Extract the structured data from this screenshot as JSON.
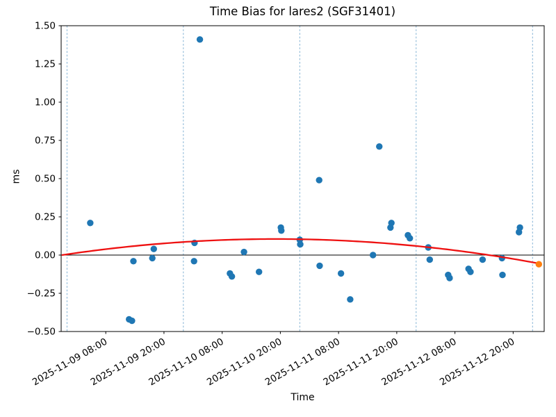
{
  "chart_data": {
    "type": "scatter",
    "title": "Time Bias for lares2 (SGF31401)",
    "xlabel": "Time",
    "ylabel": "ms",
    "ylim": [
      -0.5,
      1.5
    ],
    "xlim_hours": [
      -1.2,
      98.4
    ],
    "x_epoch": "2025-11-09 00:00",
    "grid": "vertical-day-boundaries",
    "legend": "none",
    "y_ticks": [
      {
        "v": 1.5,
        "label": "1.50"
      },
      {
        "v": 1.25,
        "label": "1.25"
      },
      {
        "v": 1.0,
        "label": "1.00"
      },
      {
        "v": 0.75,
        "label": "0.75"
      },
      {
        "v": 0.5,
        "label": "0.50"
      },
      {
        "v": 0.25,
        "label": "0.25"
      },
      {
        "v": 0.0,
        "label": "0.00"
      },
      {
        "v": -0.25,
        "label": "−0.25"
      },
      {
        "v": -0.5,
        "label": "−0.50"
      }
    ],
    "x_ticks": [
      {
        "t": 8,
        "label": "2025-11-09 08:00"
      },
      {
        "t": 20,
        "label": "2025-11-09 20:00"
      },
      {
        "t": 32,
        "label": "2025-11-10 08:00"
      },
      {
        "t": 44,
        "label": "2025-11-10 20:00"
      },
      {
        "t": 56,
        "label": "2025-11-11 08:00"
      },
      {
        "t": 68,
        "label": "2025-11-11 20:00"
      },
      {
        "t": 80,
        "label": "2025-11-12 08:00"
      },
      {
        "t": 92,
        "label": "2025-11-12 20:00"
      }
    ],
    "day_gridlines_hours": [
      0,
      24,
      48,
      72,
      96
    ],
    "zero_line_ms": 0.0,
    "series": [
      {
        "name": "time-bias-observations",
        "color": "#1f77b4",
        "points": [
          {
            "time": "2025-11-09 04:50",
            "t": 4.8,
            "ms": 0.21
          },
          {
            "time": "2025-11-09 12:50",
            "t": 12.8,
            "ms": -0.42
          },
          {
            "time": "2025-11-09 13:25",
            "t": 13.4,
            "ms": -0.43
          },
          {
            "time": "2025-11-09 13:40",
            "t": 13.7,
            "ms": -0.04
          },
          {
            "time": "2025-11-09 17:35",
            "t": 17.6,
            "ms": -0.02
          },
          {
            "time": "2025-11-09 17:55",
            "t": 17.9,
            "ms": 0.04
          },
          {
            "time": "2025-11-10 02:10",
            "t": 26.2,
            "ms": -0.04
          },
          {
            "time": "2025-11-10 02:20",
            "t": 26.3,
            "ms": 0.08
          },
          {
            "time": "2025-11-10 03:25",
            "t": 27.4,
            "ms": 1.41
          },
          {
            "time": "2025-11-10 09:35",
            "t": 33.6,
            "ms": -0.12
          },
          {
            "time": "2025-11-10 10:00",
            "t": 34.0,
            "ms": -0.14
          },
          {
            "time": "2025-11-10 12:30",
            "t": 36.5,
            "ms": 0.02
          },
          {
            "time": "2025-11-10 15:35",
            "t": 39.6,
            "ms": -0.11
          },
          {
            "time": "2025-11-10 20:05",
            "t": 44.1,
            "ms": 0.18
          },
          {
            "time": "2025-11-10 20:10",
            "t": 44.2,
            "ms": 0.16
          },
          {
            "time": "2025-11-11 00:00",
            "t": 48.0,
            "ms": 0.1
          },
          {
            "time": "2025-11-11 00:05",
            "t": 48.1,
            "ms": 0.07
          },
          {
            "time": "2025-11-11 04:00",
            "t": 52.0,
            "ms": 0.49
          },
          {
            "time": "2025-11-11 04:05",
            "t": 52.1,
            "ms": -0.07
          },
          {
            "time": "2025-11-11 08:30",
            "t": 56.5,
            "ms": -0.12
          },
          {
            "time": "2025-11-11 10:25",
            "t": 58.4,
            "ms": -0.29
          },
          {
            "time": "2025-11-11 15:05",
            "t": 63.1,
            "ms": 0.0
          },
          {
            "time": "2025-11-11 16:25",
            "t": 64.4,
            "ms": 0.71
          },
          {
            "time": "2025-11-11 18:40",
            "t": 66.7,
            "ms": 0.18
          },
          {
            "time": "2025-11-11 18:55",
            "t": 66.9,
            "ms": 0.21
          },
          {
            "time": "2025-11-11 22:20",
            "t": 70.3,
            "ms": 0.13
          },
          {
            "time": "2025-11-11 22:40",
            "t": 70.7,
            "ms": 0.11
          },
          {
            "time": "2025-11-12 02:30",
            "t": 74.5,
            "ms": 0.05
          },
          {
            "time": "2025-11-12 02:45",
            "t": 74.8,
            "ms": -0.03
          },
          {
            "time": "2025-11-12 06:35",
            "t": 78.6,
            "ms": -0.13
          },
          {
            "time": "2025-11-12 06:55",
            "t": 78.9,
            "ms": -0.15
          },
          {
            "time": "2025-11-12 10:50",
            "t": 82.8,
            "ms": -0.09
          },
          {
            "time": "2025-11-12 11:10",
            "t": 83.2,
            "ms": -0.11
          },
          {
            "time": "2025-11-12 13:40",
            "t": 85.7,
            "ms": -0.03
          },
          {
            "time": "2025-11-12 17:40",
            "t": 89.7,
            "ms": -0.02
          },
          {
            "time": "2025-11-12 17:50",
            "t": 89.8,
            "ms": -0.13
          },
          {
            "time": "2025-11-12 21:10",
            "t": 93.2,
            "ms": 0.15
          },
          {
            "time": "2025-11-12 21:25",
            "t": 93.4,
            "ms": 0.18
          }
        ]
      },
      {
        "name": "predicted-point",
        "color": "#ff7f0e",
        "points": [
          {
            "time": "2025-11-13 01:15",
            "t": 97.3,
            "ms": -0.06
          }
        ]
      }
    ],
    "trend_fit": {
      "name": "polynomial-fit-line",
      "color": "#ee1111",
      "quadratic": {
        "a": -5.42e-05,
        "root1": -1.0,
        "root2": 87.0
      },
      "t_start": -0.95,
      "t_end": 97.3,
      "peak_ms": 0.105
    },
    "colors": {
      "gridline": "#74a9cf",
      "zero_line": "#000000",
      "spine": "#000000"
    }
  }
}
